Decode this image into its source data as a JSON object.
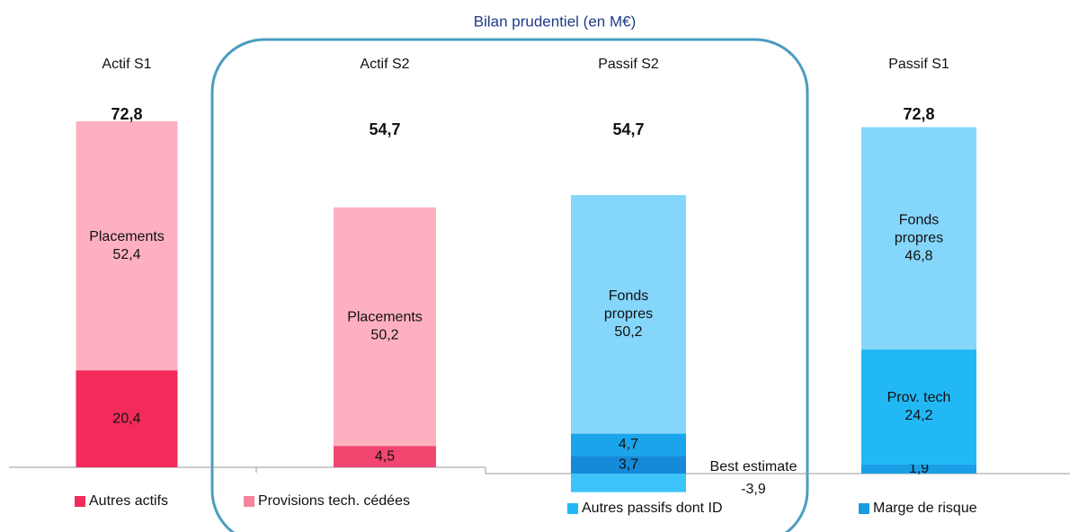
{
  "chart_data": {
    "type": "bar",
    "stacked": true,
    "title": "Bilan prudentiel (en M€)",
    "bars": [
      {
        "category": "Actif  S1",
        "total": 72.8,
        "total_label": "72,8",
        "segments": [
          {
            "value": 20.4,
            "value_label": "20,4",
            "color": "#f22b5b"
          },
          {
            "label_lines": [
              "Placements"
            ],
            "value": 52.4,
            "value_label": "52,4",
            "color": "#ffb0c0"
          }
        ]
      },
      {
        "category": "Actif  S2",
        "total": 54.7,
        "total_label": "54,7",
        "segments": [
          {
            "value": 4.5,
            "value_label": "4,5",
            "color": "#f0466f"
          },
          {
            "label_lines": [
              "Placements"
            ],
            "value": 50.2,
            "value_label": "50,2",
            "color": "#ffb0c0"
          }
        ]
      },
      {
        "category": "Passif S2",
        "total": 54.7,
        "total_label": "54,7",
        "segments": [
          {
            "label_lines": [
              "Best estimate"
            ],
            "value": -3.9,
            "value_label": "-3,9",
            "color": "#3cc3f9"
          },
          {
            "value": 3.7,
            "value_label": "3,7",
            "color": "#158ad8"
          },
          {
            "value": 4.7,
            "value_label": "4,7",
            "color": "#1aa5eb"
          },
          {
            "label_lines": [
              "Fonds",
              "propres"
            ],
            "value": 50.2,
            "value_label": "50,2",
            "color": "#85d6fb"
          }
        ]
      },
      {
        "category": "Passif S1",
        "total": 72.8,
        "total_label": "72,8",
        "segments": [
          {
            "value": 1.9,
            "value_label": "1,9",
            "color": "#1a9fe6"
          },
          {
            "label_lines": [
              "Prov. tech"
            ],
            "value": 24.2,
            "value_label": "24,2",
            "color": "#22b8f6"
          },
          {
            "label_lines": [
              "Fonds",
              "propres"
            ],
            "value": 46.8,
            "value_label": "46,8",
            "color": "#85d6fb"
          }
        ]
      }
    ],
    "legend": [
      {
        "name": "Autres actifs",
        "color": "#f22b5b"
      },
      {
        "name": "Provisions tech. cédées",
        "color": "#f5849c"
      },
      {
        "name": "Autres passifs dont ID",
        "color": "#22b8f6"
      },
      {
        "name": "Marge de risque",
        "color": "#1a9de0"
      }
    ]
  }
}
